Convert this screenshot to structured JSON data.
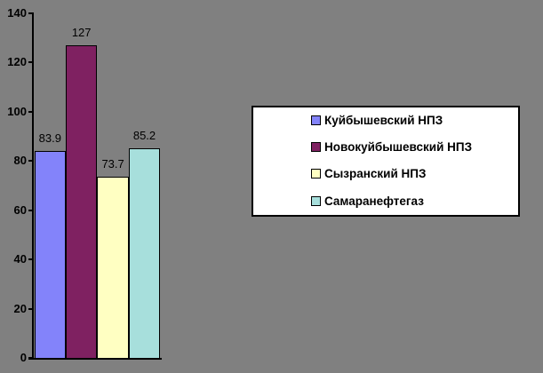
{
  "chart_data": {
    "type": "bar",
    "title": "",
    "xlabel": "",
    "ylabel": "",
    "categories": [
      "Куйбышевский НПЗ",
      "Новокуйбышевский НПЗ",
      "Сызранский НПЗ",
      "Самаранефтегаз"
    ],
    "values": [
      83.9,
      127,
      73.7,
      85.2
    ],
    "value_labels": [
      "83.9",
      "127",
      "73.7",
      "85.2"
    ],
    "bar_colors": [
      "#8383FA",
      "#7F2161",
      "#FFFFC2",
      "#A7DFDC"
    ],
    "ylim": [
      0,
      140
    ],
    "yticks": [
      0,
      20,
      40,
      60,
      80,
      100,
      120,
      140
    ],
    "ytick_labels": [
      "0",
      "20",
      "40",
      "60",
      "80",
      "100",
      "120",
      "140"
    ],
    "grid": false,
    "legend_position": "right",
    "legend": [
      {
        "label": "Куйбышевский НПЗ",
        "color": "#8383FA"
      },
      {
        "label": "Новокуйбышевский НПЗ",
        "color": "#7F2161"
      },
      {
        "label": "Сызранский НПЗ",
        "color": "#FFFFC2"
      },
      {
        "label": "Самаранефтегаз",
        "color": "#A7DFDC"
      }
    ],
    "colors": {
      "background": "#808080",
      "axis": "#000000",
      "text": "#000000",
      "legend_background": "#FFFFFF",
      "legend_border": "#000000"
    }
  }
}
